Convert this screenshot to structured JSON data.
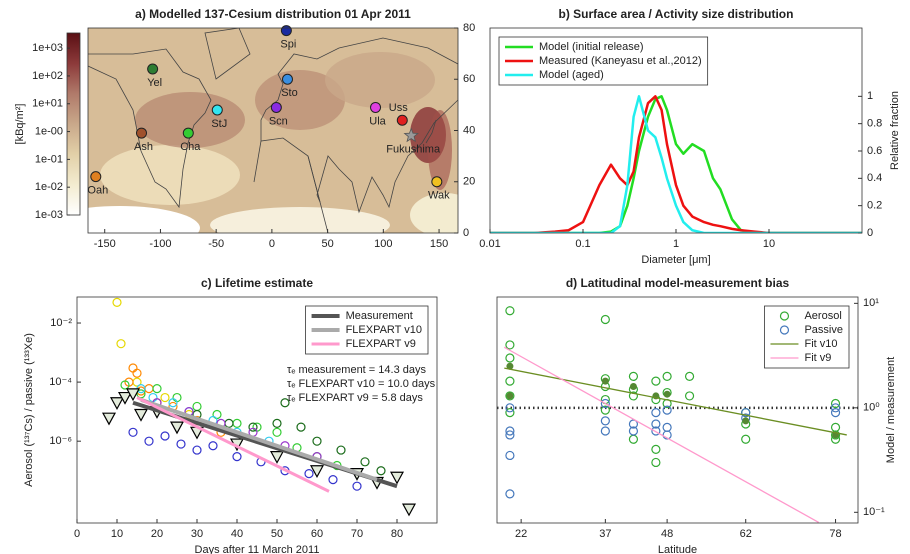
{
  "chart_data": [
    {
      "type": "map",
      "title": "a) Modelled 137-Cesium distribution 01 Apr 2011",
      "xlim": [
        -165,
        167
      ],
      "ylim": [
        0,
        80
      ],
      "xticks": [
        -150,
        -100,
        -50,
        0,
        50,
        100,
        150
      ],
      "yticks": [
        0,
        20,
        40,
        60,
        80
      ],
      "colorbar": {
        "label": "[kBq/m²]",
        "lim": [
          0.001,
          3500
        ],
        "ticks": [
          {
            "value": 1000,
            "label": "1e+03"
          },
          {
            "value": 100,
            "label": "1e+02"
          },
          {
            "value": 10,
            "label": "1e+01"
          },
          {
            "value": 1,
            "label": "1e-00"
          },
          {
            "value": 0.1,
            "label": "1e-01"
          },
          {
            "value": 0.01,
            "label": "1e-02"
          },
          {
            "value": 0.001,
            "label": "1e-03"
          }
        ],
        "colormap": [
          "#ffffff",
          "#f3ecd0",
          "#e2d0a8",
          "#c9a88a",
          "#b07a6a",
          "#8c3a3a",
          "#5a0f14"
        ]
      },
      "stations": [
        {
          "label": "Spi",
          "x": 13,
          "y": 79,
          "color": "#1a2aa0"
        },
        {
          "label": "Yel",
          "x": -107,
          "y": 64,
          "color": "#2e7d32"
        },
        {
          "label": "Sto",
          "x": 14,
          "y": 60,
          "color": "#3a8ee0"
        },
        {
          "label": "StJ",
          "x": -49,
          "y": 48,
          "color": "#33e5f0"
        },
        {
          "label": "Scn",
          "x": 4,
          "y": 49,
          "color": "#8a2be2"
        },
        {
          "label": "Ula",
          "x": 93,
          "y": 49,
          "color": "#e040e0"
        },
        {
          "label": "Uss",
          "x": 117,
          "y": 44,
          "color": "#e02020"
        },
        {
          "label": "Fukushima",
          "x": 125,
          "y": 38,
          "color": "#999999",
          "marker": "star"
        },
        {
          "label": "Ash",
          "x": -117,
          "y": 39,
          "color": "#a0522d"
        },
        {
          "label": "Cha",
          "x": -75,
          "y": 39,
          "color": "#33cc33"
        },
        {
          "label": "Oah",
          "x": -158,
          "y": 22,
          "color": "#e08020"
        },
        {
          "label": "Wak",
          "x": 148,
          "y": 20,
          "color": "#f0c020"
        }
      ]
    },
    {
      "type": "line",
      "title": "b) Surface area / Activity size distribution",
      "xlabel": "Diameter [μm]",
      "ylabel": "Relative fraction",
      "xlog": true,
      "xlim": [
        0.01,
        100
      ],
      "xticks": [
        0.01,
        0.1,
        1,
        10
      ],
      "ylim": [
        0,
        1.5
      ],
      "yticks": [
        0,
        0.2,
        0.4,
        0.6,
        0.8,
        1
      ],
      "legend": "upper left",
      "x": [
        0.01,
        0.03,
        0.05,
        0.07,
        0.1,
        0.15,
        0.2,
        0.25,
        0.3,
        0.35,
        0.4,
        0.5,
        0.6,
        0.7,
        0.8,
        1,
        1.2,
        1.5,
        2,
        2.5,
        3,
        4,
        5,
        7,
        10,
        100
      ],
      "series": [
        {
          "name": "Model (initial release)",
          "mode": "line",
          "color": "#22dd22",
          "values": [
            0,
            0,
            0,
            0,
            0,
            0,
            0.01,
            0.05,
            0.2,
            0.4,
            0.6,
            0.85,
            0.98,
            1,
            0.9,
            0.65,
            0.58,
            0.65,
            0.6,
            0.4,
            0.32,
            0.1,
            0.02,
            0,
            0,
            0
          ]
        },
        {
          "name": "Measured (Kaneyasu et al.,2012)",
          "mode": "line",
          "color": "#ee1111",
          "values": [
            0,
            0,
            0.01,
            0.02,
            0.08,
            0.35,
            0.5,
            0.4,
            0.35,
            0.45,
            0.7,
            0.95,
            1,
            0.9,
            0.65,
            0.35,
            0.2,
            0.12,
            0.08,
            0.06,
            0.05,
            0.03,
            0.02,
            0.01,
            0,
            0
          ]
        },
        {
          "name": "Model (aged)",
          "mode": "line",
          "color": "#22eeee",
          "values": [
            0,
            0,
            0,
            0,
            0,
            0,
            0,
            0.05,
            0.35,
            0.85,
            1,
            0.75,
            0.7,
            0.55,
            0.4,
            0.2,
            0.08,
            0.02,
            0,
            0,
            0,
            0,
            0,
            0,
            0,
            0
          ]
        }
      ]
    },
    {
      "type": "scatter",
      "title": "c) Lifetime estimate",
      "xlabel": "Days after 11 March 2011",
      "ylabel": "Aerosol (¹³⁷Cs) / passive (¹³³Xe)",
      "xlim": [
        0,
        90
      ],
      "xticks": [
        0,
        10,
        20,
        30,
        40,
        50,
        60,
        70,
        80
      ],
      "ylog": true,
      "ylim": [
        1.7e-09,
        0.076
      ],
      "yticks": [
        {
          "value": 0.01,
          "label": "10⁻²"
        },
        {
          "value": 0.0001,
          "label": "10⁻⁴"
        },
        {
          "value": 1e-06,
          "label": "10⁻⁶"
        }
      ],
      "legend": "upper right",
      "annotations": [
        {
          "text": "τₑ measurement     = 14.3 days",
          "color": "#555555"
        },
        {
          "text": "τₑ FLEXPART v10 = 10.0 days",
          "color": "#aaaaaa"
        },
        {
          "text": "τₑ FLEXPART v9   =  5.8 days",
          "color": "#ff88bb"
        }
      ],
      "series": [
        {
          "marker": "circle",
          "color": "#e6d800",
          "x": [
            10,
            11,
            15,
            22,
            28
          ],
          "values": [
            0.05,
            0.002,
            0.0001,
            3e-05,
            8e-06
          ]
        },
        {
          "marker": "circle",
          "color": "#ff8800",
          "x": [
            13,
            14,
            15,
            16,
            18,
            20,
            24,
            30,
            36
          ],
          "values": [
            0.0001,
            0.0003,
            0.0002,
            5e-05,
            6e-05,
            2e-05,
            1.5e-05,
            5e-06,
            2e-06
          ]
        },
        {
          "marker": "circle",
          "color": "#33cc33",
          "x": [
            12,
            16,
            20,
            25,
            30,
            35,
            40,
            45,
            50,
            55,
            60,
            65
          ],
          "values": [
            8e-05,
            4e-05,
            6e-05,
            3e-05,
            1.5e-05,
            8e-06,
            4e-06,
            3e-06,
            2e-06,
            6e-07,
            3e-07,
            1.5e-07
          ]
        },
        {
          "marker": "circle",
          "color": "#3333cc",
          "x": [
            14,
            18,
            22,
            26,
            30,
            34,
            40,
            46,
            52,
            58,
            64,
            70
          ],
          "values": [
            2e-06,
            1e-06,
            1.5e-06,
            8e-07,
            5e-07,
            7e-07,
            3e-07,
            2e-07,
            1e-07,
            8e-08,
            5e-08,
            3e-08
          ]
        },
        {
          "marker": "circle",
          "color": "#1a6b1a",
          "x": [
            30,
            38,
            44,
            50,
            52,
            56,
            60,
            66,
            72,
            76
          ],
          "values": [
            8e-06,
            4e-06,
            3e-06,
            4e-06,
            2e-05,
            3e-06,
            1e-06,
            5e-07,
            2e-07,
            1e-07
          ]
        },
        {
          "marker": "circle",
          "color": "#33ccee",
          "x": [
            16,
            19,
            24,
            28,
            34,
            40,
            48
          ],
          "values": [
            6e-05,
            3e-05,
            2e-05,
            1e-05,
            5e-06,
            2e-06,
            1e-06
          ]
        },
        {
          "marker": "circle",
          "color": "#9933cc",
          "x": [
            20,
            28,
            36,
            44,
            52,
            60
          ],
          "values": [
            2e-05,
            1e-05,
            4e-06,
            2e-06,
            7e-07,
            3e-07
          ]
        },
        {
          "marker": "triangle",
          "color": "#000000",
          "x": [
            8,
            10,
            12,
            14,
            16,
            20,
            25,
            30,
            40,
            50,
            60,
            70,
            75,
            80,
            83
          ],
          "values": [
            6e-06,
            2e-05,
            3e-05,
            4e-05,
            8e-06,
            1e-05,
            3e-06,
            2e-06,
            8e-07,
            3e-07,
            1e-07,
            8e-08,
            4e-08,
            6e-08,
            5e-09
          ]
        },
        {
          "name": "Measurement",
          "mode": "line",
          "width": 4,
          "color": "#555555",
          "x": [
            14,
            80
          ],
          "values": [
            2e-05,
            3e-08
          ]
        },
        {
          "name": "FLEXPART v10",
          "mode": "line",
          "width": 4,
          "color": "#aaaaaa",
          "x": [
            16,
            75
          ],
          "values": [
            2.5e-05,
            5e-08
          ]
        },
        {
          "name": "FLEXPART v9",
          "mode": "line",
          "width": 3,
          "color": "#ff99cc",
          "x": [
            15,
            63
          ],
          "values": [
            3e-05,
            2e-08
          ]
        }
      ]
    },
    {
      "type": "scatter",
      "title": "d) Latitudinal model-measurement bias",
      "xlabel": "Latitude",
      "ylabel": "Model / measurement",
      "xlim": [
        17.7,
        82
      ],
      "xticks": [
        22,
        37,
        48,
        62,
        78
      ],
      "ylog": true,
      "ylim": [
        0.079,
        11.5
      ],
      "yticks": [
        {
          "value": 0.1,
          "label": "10⁻¹"
        },
        {
          "value": 1,
          "label": "10⁰"
        },
        {
          "value": 10,
          "label": "10¹"
        }
      ],
      "hline": 1,
      "legend": "upper right",
      "series": [
        {
          "name": "Aerosol",
          "marker": "circle",
          "color": "#33aa33",
          "x": [
            20,
            20,
            20,
            20,
            20,
            20,
            37,
            37,
            37,
            37,
            37,
            42,
            42,
            42,
            42,
            46,
            46,
            46,
            46,
            48,
            48,
            48,
            52,
            52,
            62,
            62,
            62,
            78,
            78,
            78,
            78
          ],
          "values": [
            8.5,
            4,
            3,
            1.8,
            1.3,
            0.9,
            7,
            1.9,
            1.6,
            1.2,
            0.95,
            2,
            1.5,
            1.3,
            0.5,
            1.8,
            1.2,
            0.4,
            0.3,
            2,
            1.4,
            1.1,
            2,
            1.3,
            0.9,
            0.7,
            0.5,
            0.65,
            0.55,
            0.5,
            1.1
          ]
        },
        {
          "name": "Passive",
          "marker": "circle",
          "color": "#4477bb",
          "x": [
            20,
            20,
            20,
            20,
            20,
            37,
            37,
            37,
            42,
            42,
            46,
            46,
            46,
            48,
            48,
            48,
            62,
            62,
            78,
            78
          ],
          "values": [
            1,
            0.6,
            0.55,
            0.35,
            0.15,
            1.1,
            0.75,
            0.6,
            0.7,
            0.6,
            0.9,
            0.7,
            0.6,
            0.95,
            0.65,
            0.55,
            0.9,
            0.8,
            0.9,
            1
          ]
        },
        {
          "marker": "dot",
          "color": "#558833",
          "x": [
            20,
            20,
            37,
            42,
            46,
            48,
            62,
            78
          ],
          "values": [
            2.5,
            1.3,
            1.8,
            1.6,
            1.3,
            1.35,
            0.75,
            0.55
          ]
        },
        {
          "name": "Fit v10",
          "mode": "line",
          "width": 1.3,
          "color": "#6b8e23",
          "x": [
            19,
            80
          ],
          "values": [
            2.4,
            0.55
          ]
        },
        {
          "name": "Fit v9",
          "mode": "line",
          "width": 1.3,
          "color": "#ff99cc",
          "x": [
            19,
            75
          ],
          "values": [
            3.8,
            0.08
          ]
        }
      ]
    }
  ]
}
